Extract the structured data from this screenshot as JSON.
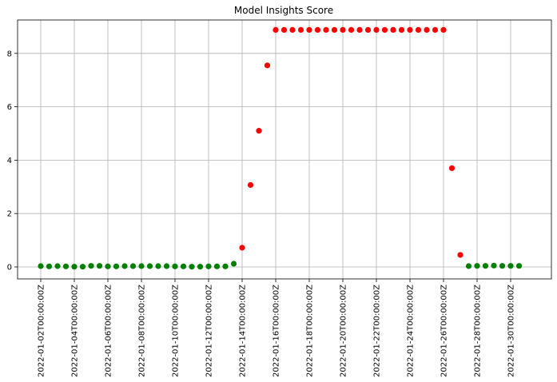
{
  "chart_data": {
    "type": "scatter",
    "title": "Model Insights Score",
    "xlabel": "",
    "ylabel": "",
    "x_start": "2022-01-02",
    "x_tick_labels": [
      "2022-01-02T00:00:00Z",
      "2022-01-04T00:00:00Z",
      "2022-01-06T00:00:00Z",
      "2022-01-08T00:00:00Z",
      "2022-01-10T00:00:00Z",
      "2022-01-12T00:00:00Z",
      "2022-01-14T00:00:00Z",
      "2022-01-16T00:00:00Z",
      "2022-01-18T00:00:00Z",
      "2022-01-20T00:00:00Z",
      "2022-01-22T00:00:00Z",
      "2022-01-24T00:00:00Z",
      "2022-01-26T00:00:00Z",
      "2022-01-28T00:00:00Z",
      "2022-01-30T00:00:00Z"
    ],
    "y_ticks": [
      0,
      2,
      4,
      6,
      8
    ],
    "ylim": [
      -0.45,
      9.3
    ],
    "grid": true,
    "colors": {
      "normal": "#008000",
      "anomaly": "#ff0000"
    },
    "points": [
      {
        "t": "2022-01-02T00:00:00Z",
        "y": 0.03,
        "status": "normal"
      },
      {
        "t": "2022-01-02T12:00:00Z",
        "y": 0.02,
        "status": "normal"
      },
      {
        "t": "2022-01-03T00:00:00Z",
        "y": 0.03,
        "status": "normal"
      },
      {
        "t": "2022-01-03T12:00:00Z",
        "y": 0.02,
        "status": "normal"
      },
      {
        "t": "2022-01-04T00:00:00Z",
        "y": 0.01,
        "status": "normal"
      },
      {
        "t": "2022-01-04T12:00:00Z",
        "y": 0.01,
        "status": "normal"
      },
      {
        "t": "2022-01-05T00:00:00Z",
        "y": 0.04,
        "status": "normal"
      },
      {
        "t": "2022-01-05T12:00:00Z",
        "y": 0.04,
        "status": "normal"
      },
      {
        "t": "2022-01-06T00:00:00Z",
        "y": 0.02,
        "status": "normal"
      },
      {
        "t": "2022-01-06T12:00:00Z",
        "y": 0.02,
        "status": "normal"
      },
      {
        "t": "2022-01-07T00:00:00Z",
        "y": 0.03,
        "status": "normal"
      },
      {
        "t": "2022-01-07T12:00:00Z",
        "y": 0.03,
        "status": "normal"
      },
      {
        "t": "2022-01-08T00:00:00Z",
        "y": 0.03,
        "status": "normal"
      },
      {
        "t": "2022-01-08T12:00:00Z",
        "y": 0.03,
        "status": "normal"
      },
      {
        "t": "2022-01-09T00:00:00Z",
        "y": 0.03,
        "status": "normal"
      },
      {
        "t": "2022-01-09T12:00:00Z",
        "y": 0.03,
        "status": "normal"
      },
      {
        "t": "2022-01-10T00:00:00Z",
        "y": 0.02,
        "status": "normal"
      },
      {
        "t": "2022-01-10T12:00:00Z",
        "y": 0.02,
        "status": "normal"
      },
      {
        "t": "2022-01-11T00:00:00Z",
        "y": 0.01,
        "status": "normal"
      },
      {
        "t": "2022-01-11T12:00:00Z",
        "y": 0.01,
        "status": "normal"
      },
      {
        "t": "2022-01-12T00:00:00Z",
        "y": 0.02,
        "status": "normal"
      },
      {
        "t": "2022-01-12T12:00:00Z",
        "y": 0.02,
        "status": "normal"
      },
      {
        "t": "2022-01-13T00:00:00Z",
        "y": 0.02,
        "status": "normal"
      },
      {
        "t": "2022-01-13T12:00:00Z",
        "y": 0.12,
        "status": "normal"
      },
      {
        "t": "2022-01-14T00:00:00Z",
        "y": 0.72,
        "status": "anomaly"
      },
      {
        "t": "2022-01-14T12:00:00Z",
        "y": 3.07,
        "status": "anomaly"
      },
      {
        "t": "2022-01-15T00:00:00Z",
        "y": 5.1,
        "status": "anomaly"
      },
      {
        "t": "2022-01-15T12:00:00Z",
        "y": 7.55,
        "status": "anomaly"
      },
      {
        "t": "2022-01-16T00:00:00Z",
        "y": 8.88,
        "status": "anomaly"
      },
      {
        "t": "2022-01-16T12:00:00Z",
        "y": 8.88,
        "status": "anomaly"
      },
      {
        "t": "2022-01-17T00:00:00Z",
        "y": 8.88,
        "status": "anomaly"
      },
      {
        "t": "2022-01-17T12:00:00Z",
        "y": 8.88,
        "status": "anomaly"
      },
      {
        "t": "2022-01-18T00:00:00Z",
        "y": 8.88,
        "status": "anomaly"
      },
      {
        "t": "2022-01-18T12:00:00Z",
        "y": 8.88,
        "status": "anomaly"
      },
      {
        "t": "2022-01-19T00:00:00Z",
        "y": 8.88,
        "status": "anomaly"
      },
      {
        "t": "2022-01-19T12:00:00Z",
        "y": 8.88,
        "status": "anomaly"
      },
      {
        "t": "2022-01-20T00:00:00Z",
        "y": 8.88,
        "status": "anomaly"
      },
      {
        "t": "2022-01-20T12:00:00Z",
        "y": 8.88,
        "status": "anomaly"
      },
      {
        "t": "2022-01-21T00:00:00Z",
        "y": 8.88,
        "status": "anomaly"
      },
      {
        "t": "2022-01-21T12:00:00Z",
        "y": 8.88,
        "status": "anomaly"
      },
      {
        "t": "2022-01-22T00:00:00Z",
        "y": 8.88,
        "status": "anomaly"
      },
      {
        "t": "2022-01-22T12:00:00Z",
        "y": 8.88,
        "status": "anomaly"
      },
      {
        "t": "2022-01-23T00:00:00Z",
        "y": 8.88,
        "status": "anomaly"
      },
      {
        "t": "2022-01-23T12:00:00Z",
        "y": 8.88,
        "status": "anomaly"
      },
      {
        "t": "2022-01-24T00:00:00Z",
        "y": 8.88,
        "status": "anomaly"
      },
      {
        "t": "2022-01-24T12:00:00Z",
        "y": 8.88,
        "status": "anomaly"
      },
      {
        "t": "2022-01-25T00:00:00Z",
        "y": 8.88,
        "status": "anomaly"
      },
      {
        "t": "2022-01-25T12:00:00Z",
        "y": 8.88,
        "status": "anomaly"
      },
      {
        "t": "2022-01-26T00:00:00Z",
        "y": 8.88,
        "status": "anomaly"
      },
      {
        "t": "2022-01-26T12:00:00Z",
        "y": 3.7,
        "status": "anomaly"
      },
      {
        "t": "2022-01-27T00:00:00Z",
        "y": 0.45,
        "status": "anomaly"
      },
      {
        "t": "2022-01-27T12:00:00Z",
        "y": 0.03,
        "status": "normal"
      },
      {
        "t": "2022-01-28T00:00:00Z",
        "y": 0.04,
        "status": "normal"
      },
      {
        "t": "2022-01-28T12:00:00Z",
        "y": 0.04,
        "status": "normal"
      },
      {
        "t": "2022-01-29T00:00:00Z",
        "y": 0.05,
        "status": "normal"
      },
      {
        "t": "2022-01-29T12:00:00Z",
        "y": 0.04,
        "status": "normal"
      },
      {
        "t": "2022-01-30T00:00:00Z",
        "y": 0.04,
        "status": "normal"
      },
      {
        "t": "2022-01-30T12:00:00Z",
        "y": 0.04,
        "status": "normal"
      }
    ]
  }
}
